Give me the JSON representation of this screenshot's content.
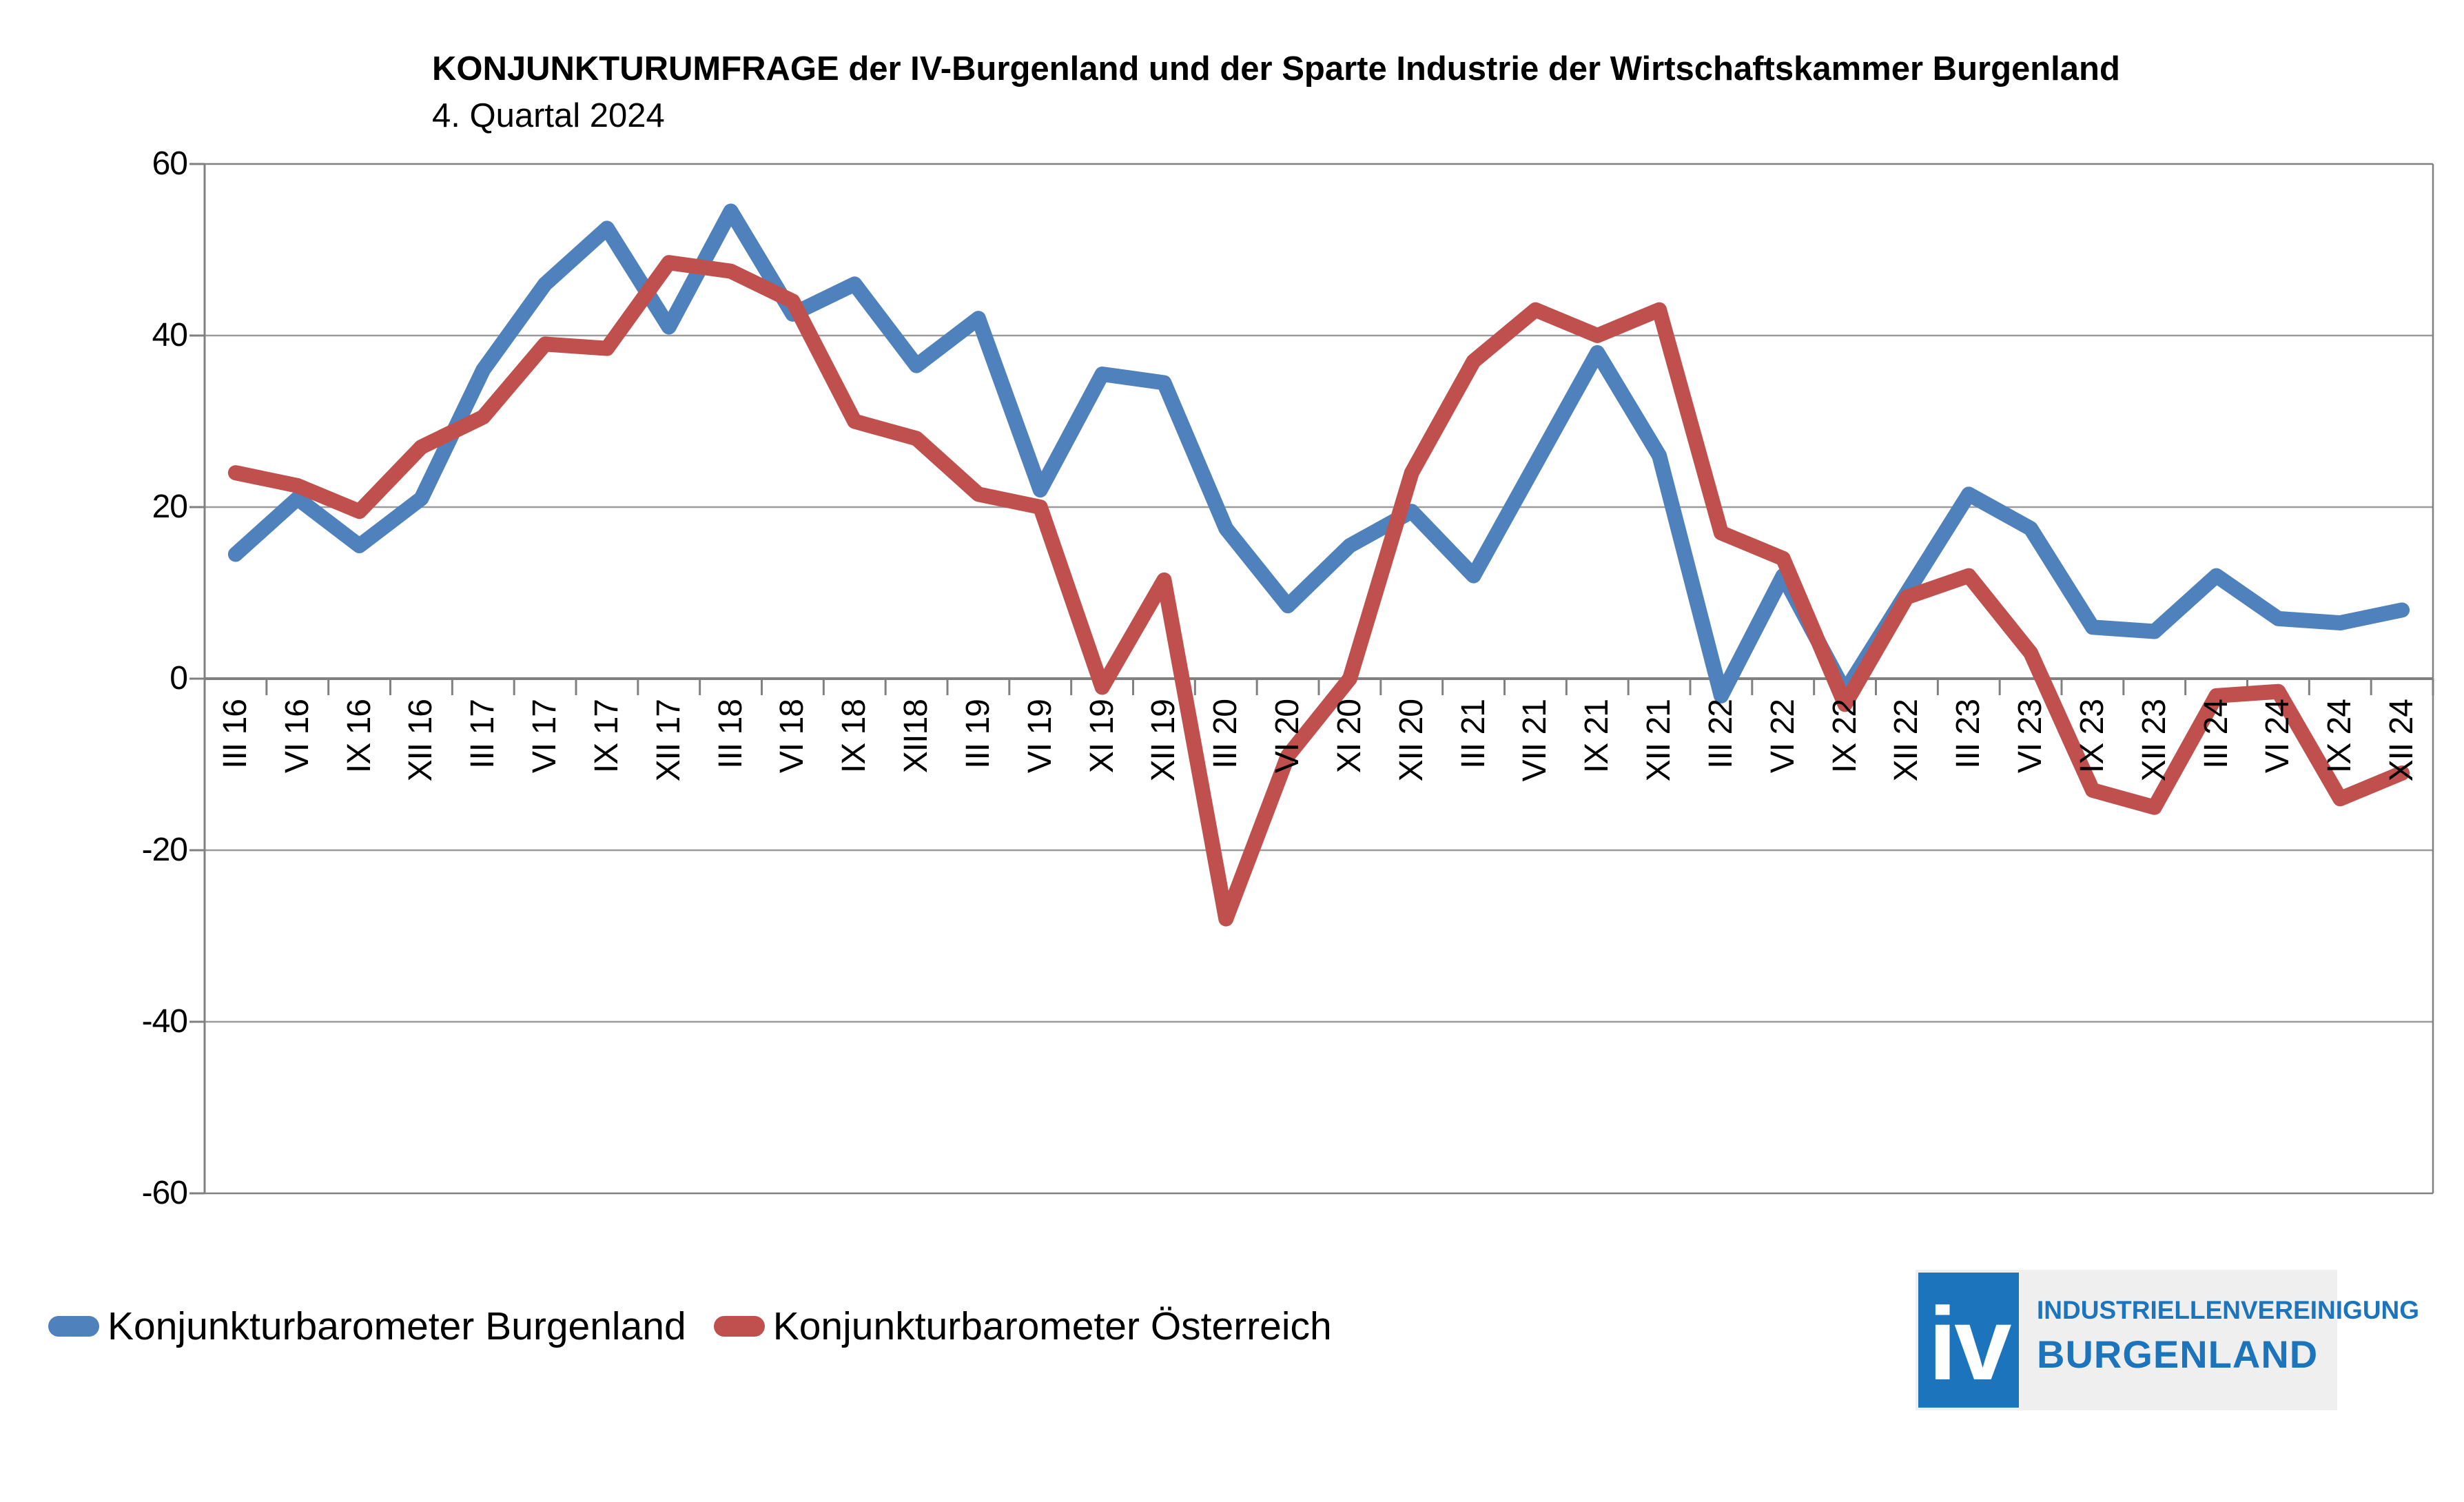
{
  "title": {
    "line1": "KONJUNKTURUMFRAGE der IV-Burgenland und der Sparte Industrie der Wirtschaftskammer Burgenland",
    "line2": "4. Quartal 2024"
  },
  "legend": {
    "items": [
      {
        "label": "Konjunkturbarometer Burgenland",
        "color": "#4F81BD"
      },
      {
        "label": "Konjunkturbarometer Österreich",
        "color": "#C0504D"
      }
    ]
  },
  "logo": {
    "monogram": "iv",
    "line1": "INDUSTRIELLENVEREINIGUNG",
    "line2": "BURGENLAND",
    "blue": "#1C75BC",
    "bg": "#efefef"
  },
  "chart_data": {
    "type": "line",
    "title": "KONJUNKTURUMFRAGE der IV-Burgenland und der Sparte Industrie der Wirtschaftskammer Burgenland",
    "subtitle": "4. Quartal 2024",
    "categories": [
      "III 16",
      "VI 16",
      "IX 16",
      "XII 16",
      "III 17",
      "VI 17",
      "IX 17",
      "XII 17",
      "III 18",
      "VI 18",
      "IX 18",
      "XII18",
      "III 19",
      "VI 19",
      "XI 19",
      "XII 19",
      "III 20",
      "VI 20",
      "XI 20",
      "XII 20",
      "III 21",
      "VII 21",
      "IX 21",
      "XII 21",
      "III 22",
      "VI 22",
      "IX 22",
      "XII 22",
      "III 23",
      "VI 23",
      "IX 23",
      "XII 23",
      "III 24",
      "VI 24",
      "IX 24",
      "XII 24"
    ],
    "series": [
      {
        "name": "Konjunkturbarometer Burgenland",
        "color": "#4F81BD",
        "values": [
          14.5,
          21,
          15.5,
          21,
          36,
          46,
          52.5,
          41,
          54.5,
          42.5,
          46,
          36.5,
          42,
          22,
          35.5,
          34.5,
          17.5,
          8.5,
          15.5,
          19.5,
          12,
          25,
          38,
          26,
          -2,
          12,
          -1.5,
          10,
          21.5,
          17.5,
          6,
          5.5,
          12,
          7,
          6.5,
          8
        ]
      },
      {
        "name": "Konjunkturbarometer Österreich",
        "color": "#C0504D",
        "values": [
          24,
          22.5,
          19.5,
          27,
          30.5,
          39,
          38.5,
          48.5,
          47.5,
          44,
          30,
          28,
          21.5,
          20,
          -1,
          11.5,
          -28,
          -9,
          0,
          24,
          37,
          43,
          40,
          43,
          17,
          14,
          -3,
          9.5,
          12,
          3,
          -13,
          -15,
          -2,
          -1.5,
          -14,
          -11
        ]
      }
    ],
    "ylim": [
      -60,
      60
    ],
    "y_ticks": [
      60,
      40,
      20,
      0,
      -20,
      -40,
      -60
    ],
    "grid": "horizontal gridlines every 20, x axis drawn at 0 with tick marks",
    "legend_position": "bottom-left",
    "line_width": 22,
    "grid_color": "#9b9b9b",
    "axis_color": "#808080"
  }
}
